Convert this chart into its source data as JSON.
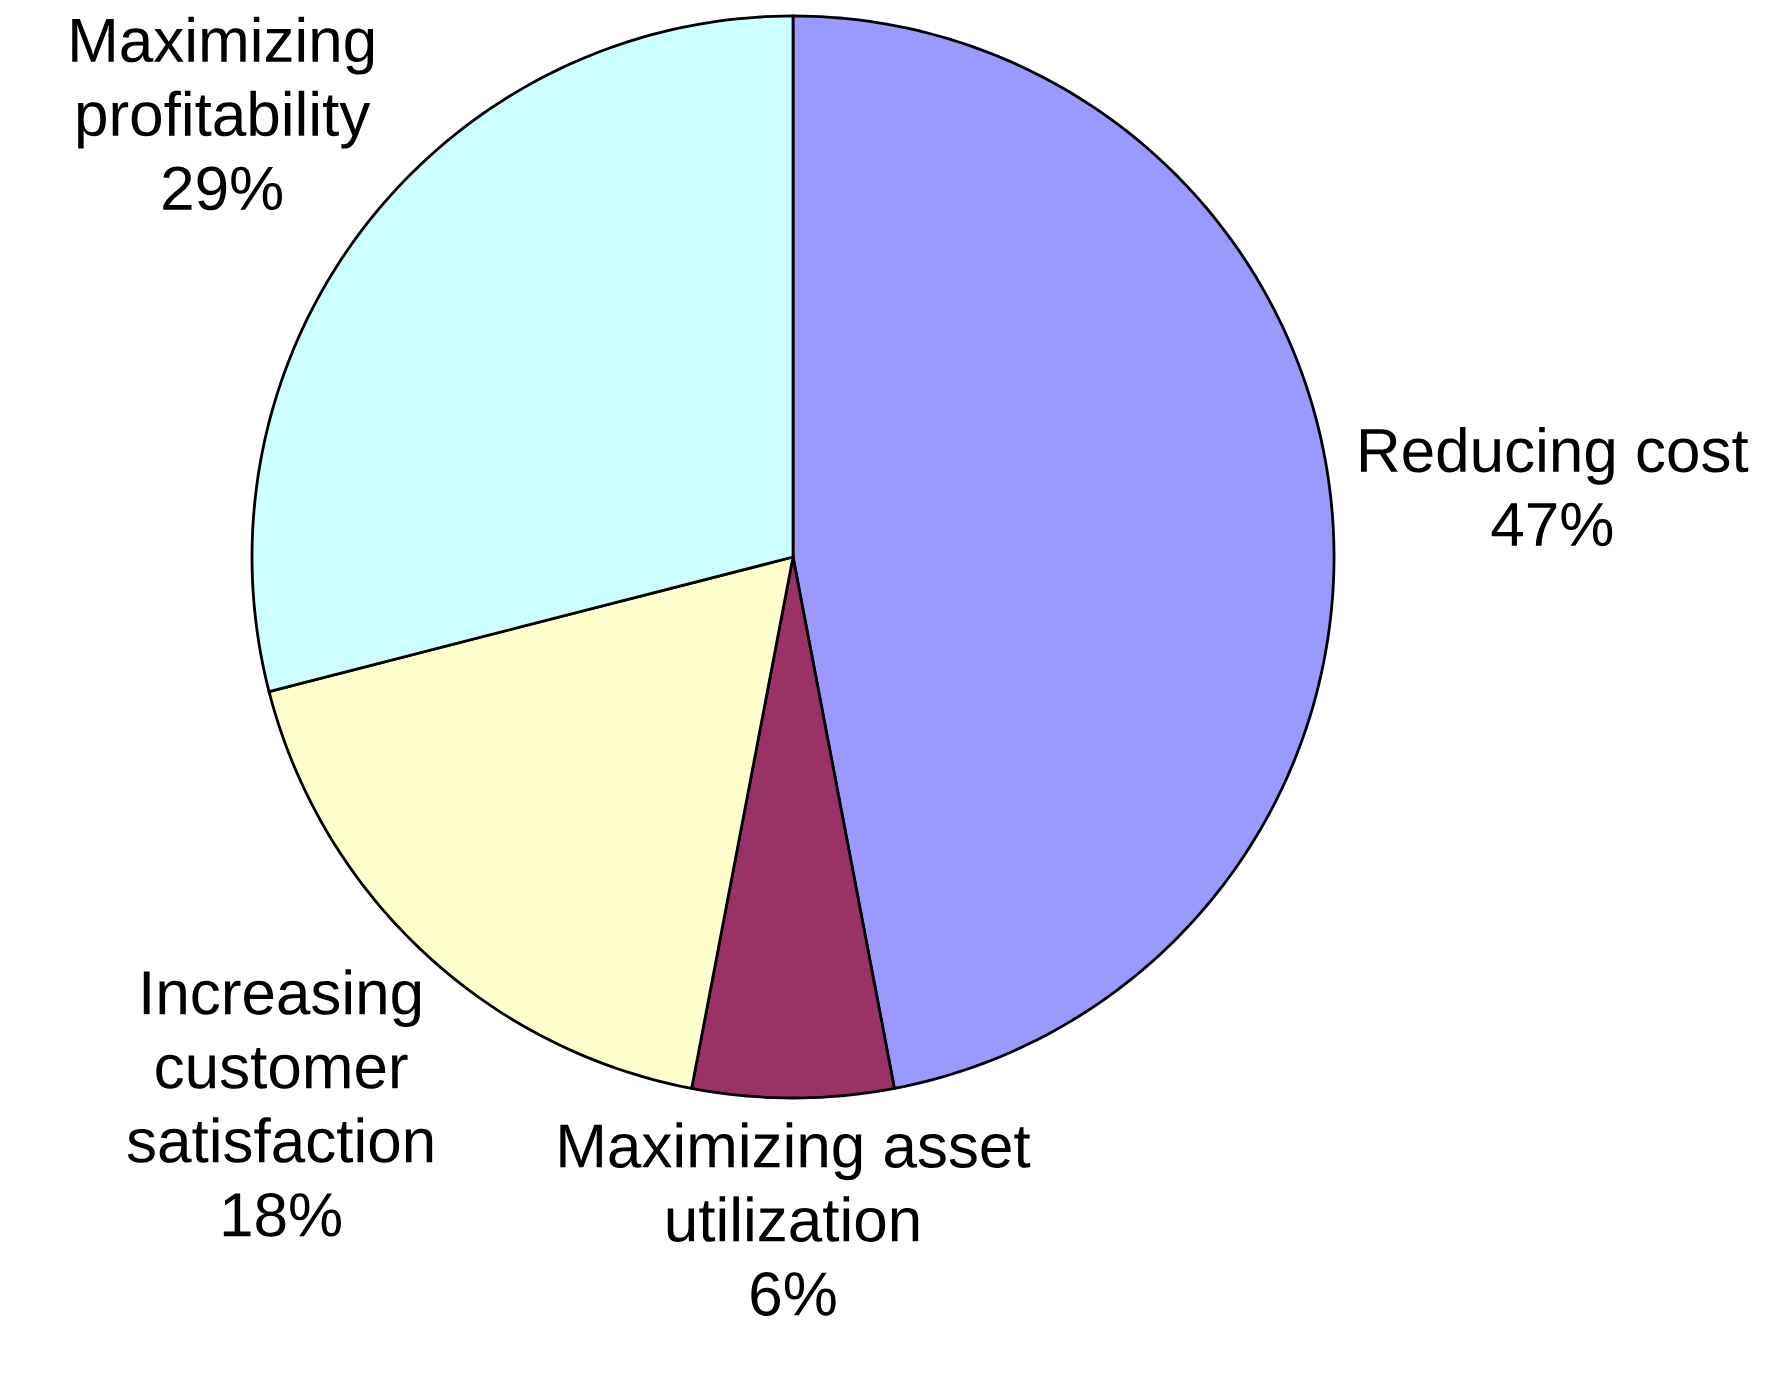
{
  "chart_data": {
    "type": "pie",
    "categories": [
      "Reducing cost",
      "Maximizing asset utilization",
      "Increasing customer satisfaction",
      "Maximizing profitability"
    ],
    "values": [
      47,
      6,
      18,
      29
    ],
    "value_labels": [
      "47%",
      "6%",
      "18%",
      "29%"
    ],
    "colors": [
      "#9999ff",
      "#993366",
      "#ffffcc",
      "#ccffff"
    ]
  }
}
